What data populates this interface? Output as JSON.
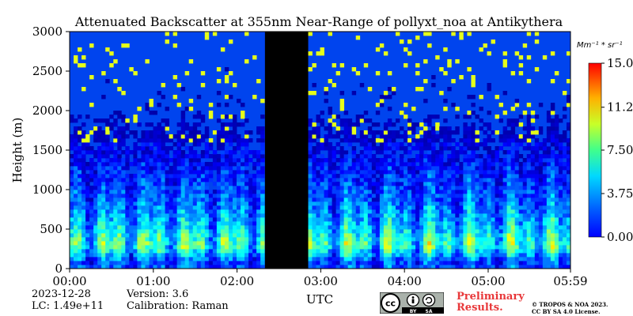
{
  "chart_data": {
    "type": "heatmap",
    "title": "Attenuated Backscatter at 355nm Near-Range of pollyxt_noa at Antikythera",
    "xlabel": "UTC",
    "ylabel": "Height (m)",
    "xlim": [
      "00:00",
      "05:59"
    ],
    "ylim": [
      0,
      3000
    ],
    "x_ticks": [
      "00:00",
      "01:00",
      "02:00",
      "03:00",
      "04:00",
      "05:00",
      "05:59"
    ],
    "y_ticks": [
      "0",
      "500",
      "1000",
      "1500",
      "2000",
      "2500",
      "3000"
    ],
    "no_data_interval": [
      "02:20",
      "02:51"
    ],
    "colorbar": {
      "unit": "Mm⁻¹ * sr⁻¹",
      "range": [
        0.0,
        15.0
      ],
      "ticks": [
        "15.0",
        "11.2",
        "7.50",
        "3.75",
        "0.00"
      ],
      "colormap": "jet"
    },
    "profile": [
      {
        "height": 100,
        "level": 3.0
      },
      {
        "height": 300,
        "level": 6.5
      },
      {
        "height": 500,
        "level": 5.0
      },
      {
        "height": 800,
        "level": 3.5
      },
      {
        "height": 1000,
        "level": 2.8
      },
      {
        "height": 1300,
        "level": 2.0
      },
      {
        "height": 1500,
        "level": 1.2
      },
      {
        "height": 2000,
        "level": 0.2
      },
      {
        "height": 3000,
        "level": 0.0
      }
    ]
  },
  "info": {
    "date": "2023-12-28",
    "version": "Version: 3.6",
    "lc": "LC: 1.49e+11",
    "calibration": "Calibration: Raman",
    "preliminary_line1": "Preliminary",
    "preliminary_line2": "Results.",
    "copyright_line1": "© TROPOS & NOA 2023.",
    "copyright_line2": "CC BY SA 4.0 License."
  },
  "license_badge": {
    "text_cc": "cc",
    "text_by": "BY",
    "text_sa": "SA"
  }
}
